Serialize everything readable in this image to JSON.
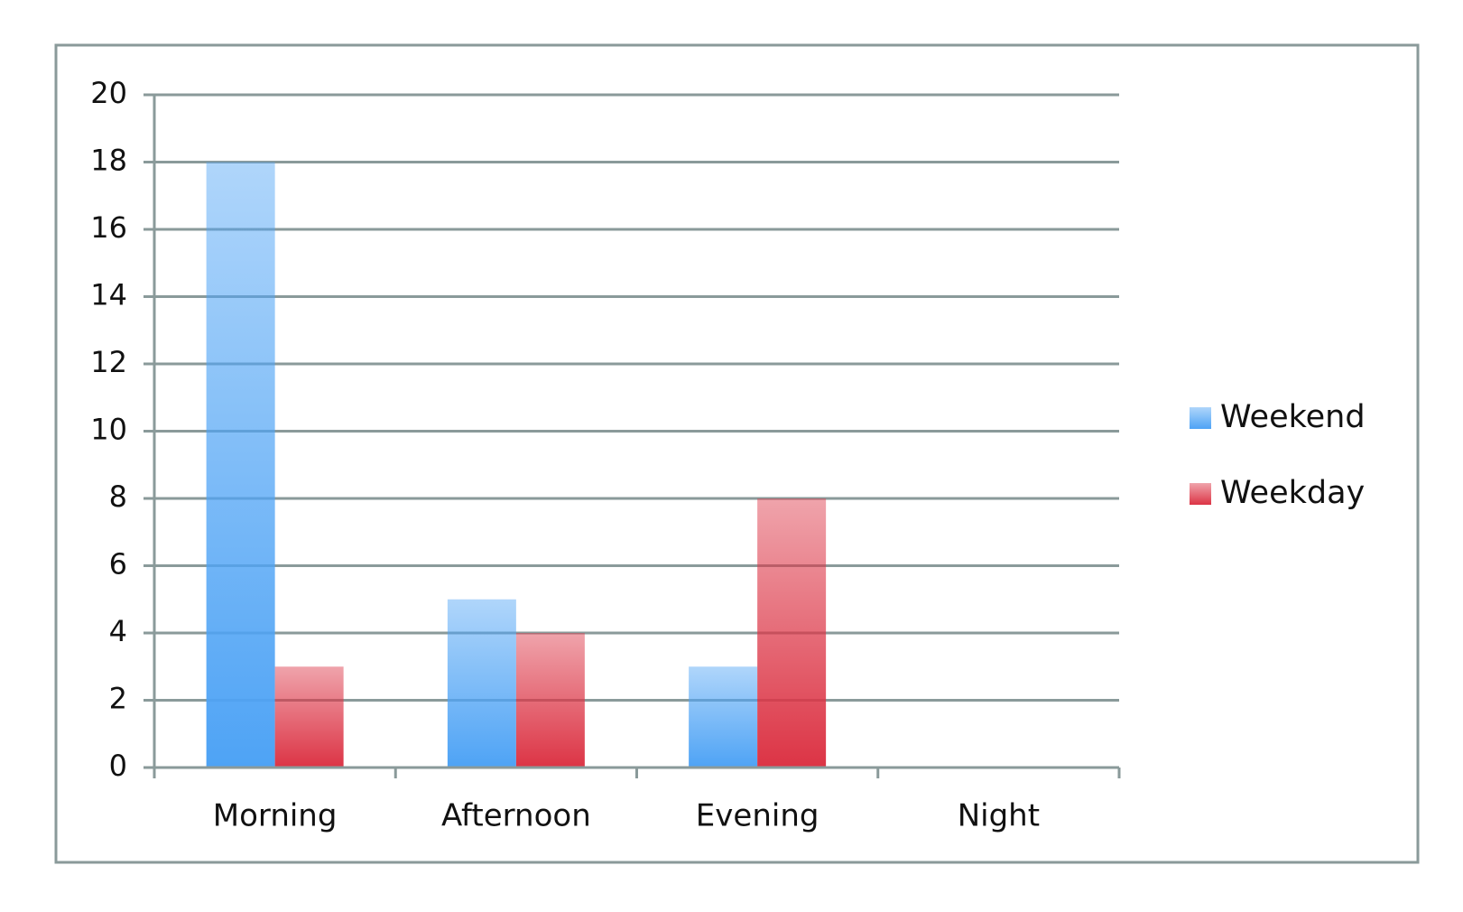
{
  "chart_data": {
    "type": "bar",
    "categories": [
      "Morning",
      "Afternoon",
      "Evening",
      "Night"
    ],
    "series": [
      {
        "name": "Weekend",
        "color": "#4ea3f5",
        "values": [
          18,
          5,
          3,
          0
        ]
      },
      {
        "name": "Weekday",
        "color": "#dc3445",
        "values": [
          3,
          4,
          8,
          0
        ]
      }
    ],
    "ylim": [
      0,
      20
    ],
    "yticks": [
      0,
      2,
      4,
      6,
      8,
      10,
      12,
      14,
      16,
      18,
      20
    ],
    "grid": true,
    "legend": "right"
  }
}
